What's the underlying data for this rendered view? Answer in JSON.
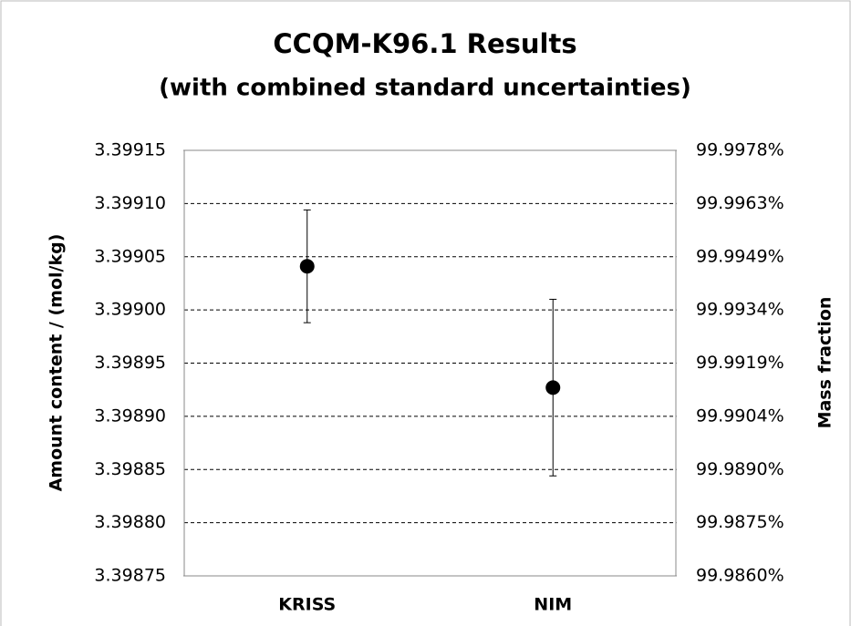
{
  "chart_data": {
    "type": "errorbar",
    "title": "CCQM-K96.1 Results",
    "subtitle": "(with combined standard uncertainties)",
    "y_label": "Amount content / (mol/kg)",
    "y2_label": "Mass fraction",
    "categories": [
      "KRISS",
      "NIM"
    ],
    "values": [
      3.399041,
      3.398927
    ],
    "errors": [
      5.3e-05,
      8.3e-05
    ],
    "color": "#000000",
    "ylim": [
      3.39875,
      3.39915
    ],
    "yticks": [
      3.39875,
      3.39885,
      3.39895,
      3.39905,
      3.39915,
      {
        "value": 3.3988,
        "label": "3.39880"
      },
      {
        "value": 3.3989,
        "label": "3.39890"
      },
      {
        "value": 3.399,
        "label": "3.39900"
      },
      {
        "value": 3.3991,
        "label": "3.39910"
      }
    ],
    "y2lim": [
      99.986,
      99.9978
    ],
    "y2ticks": [
      {
        "value": 99.986,
        "label": "99.9860%"
      },
      {
        "value": 99.987475,
        "label": "99.9875%"
      },
      {
        "value": 99.98895,
        "label": "99.9890%"
      },
      {
        "value": 99.990425,
        "label": "99.9904%"
      },
      {
        "value": 99.9919,
        "label": "99.9919%"
      },
      {
        "value": 99.993375,
        "label": "99.9934%"
      },
      {
        "value": 99.99485,
        "label": "99.9949%"
      },
      {
        "value": 99.996325,
        "label": "99.9963%"
      },
      {
        "value": 99.9978,
        "label": "99.9978%"
      }
    ],
    "grid": true
  }
}
